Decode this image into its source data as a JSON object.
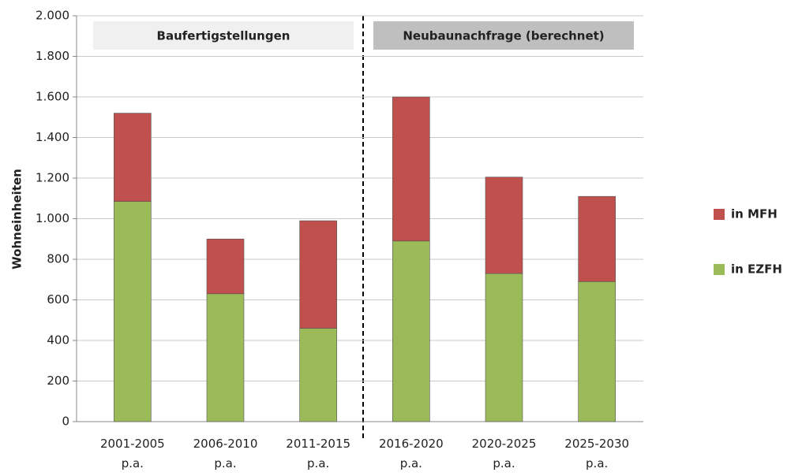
{
  "chart_data": {
    "type": "stacked_bar",
    "y_label": "Wohneinheiten",
    "categories": [
      "2001-2005 p.a.",
      "2006-2010 p.a.",
      "2011-2015 p.a.",
      "2016-2020 p.a.",
      "2020-2025 p.a.",
      "2025-2030 p.a."
    ],
    "series": [
      {
        "name": "in EZFH",
        "color": "#9bbb59",
        "values": [
          1085,
          630,
          460,
          890,
          730,
          690
        ]
      },
      {
        "name": "in MFH",
        "color": "#c0504d",
        "values": [
          435,
          270,
          530,
          710,
          475,
          420
        ]
      }
    ],
    "ylim": [
      0,
      2000
    ],
    "yticks": [
      0,
      200,
      400,
      600,
      800,
      {
        "value": 1000,
        "label": "1.000"
      },
      {
        "value": 1200,
        "label": "1.200"
      },
      {
        "value": 1400,
        "label": "1.400"
      },
      {
        "value": 1600,
        "label": "1.600"
      },
      {
        "value": 1800,
        "label": "1.800"
      },
      {
        "value": 2000,
        "label": "2.000"
      }
    ],
    "grid": true,
    "legend": "right",
    "annotations": [
      "Baufertigstellungen",
      "Neubaunachfrage (berechnet)"
    ]
  }
}
